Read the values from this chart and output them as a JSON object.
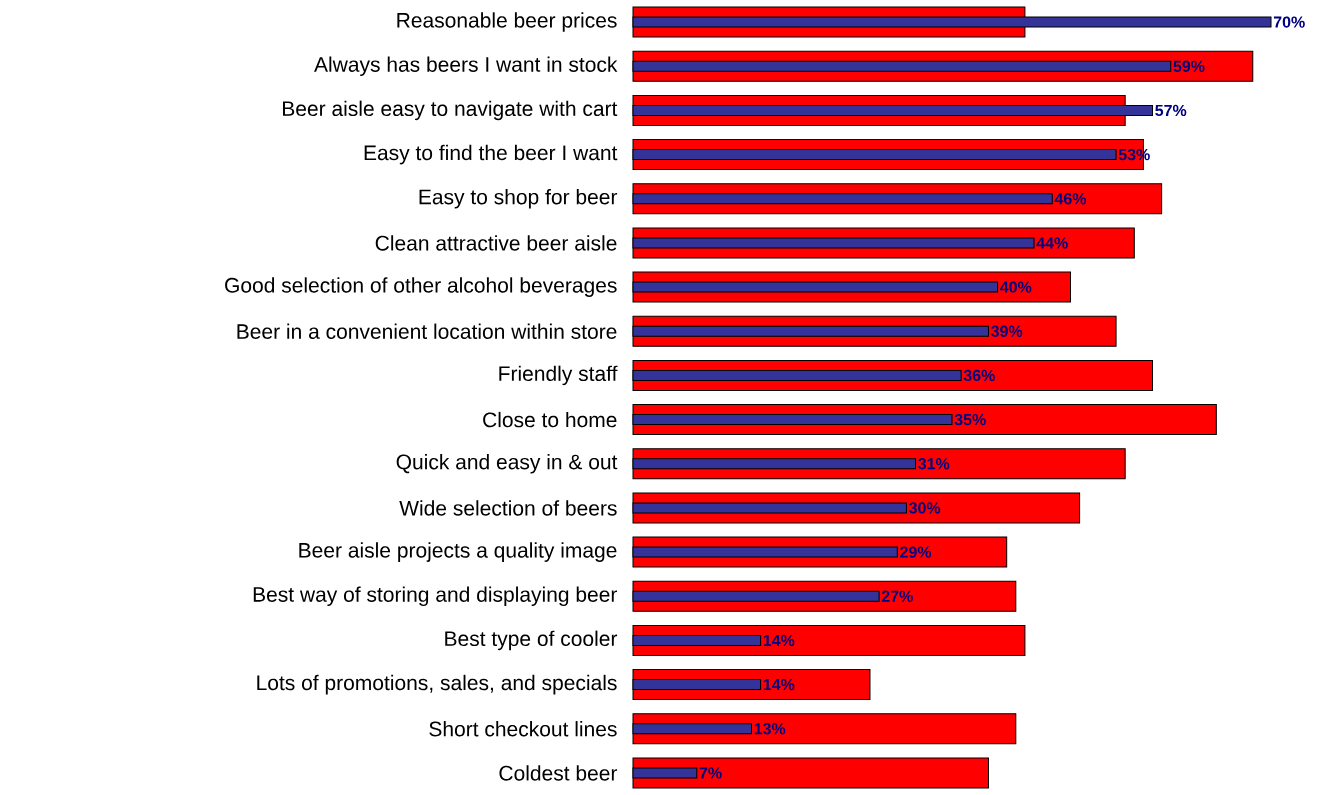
{
  "chart_data": {
    "type": "bar",
    "orientation": "horizontal",
    "tick_labels": "y",
    "xlim": [
      0,
      70
    ],
    "categories": [
      "Reasonable beer prices",
      "Always has beers I want in stock",
      "Beer aisle easy to navigate with cart",
      "Easy to find the beer I want",
      "Easy to shop for beer",
      "Clean attractive beer aisle",
      "Good selection of other alcohol beverages",
      "Beer in a convenient location within store",
      "Friendly staff",
      "Close to home",
      "Quick and easy in & out",
      "Wide selection of beers",
      "Beer aisle projects a quality image",
      "Best way of storing and displaying beer",
      "Best type of cooler",
      "Lots of promotions, sales, and specials",
      "Short checkout lines",
      "Coldest beer"
    ],
    "series": [
      {
        "color": "#ff0000",
        "values": [
          43,
          68,
          54,
          56,
          58,
          55,
          48,
          53,
          57,
          64,
          54,
          49,
          41,
          42,
          43,
          26,
          42,
          39
        ]
      },
      {
        "color": "#333399",
        "values": [
          70,
          59,
          57,
          53,
          46,
          44,
          40,
          39,
          36,
          35,
          31,
          30,
          29,
          27,
          14,
          14,
          13,
          7
        ],
        "value_labels": [
          "70%",
          "59%",
          "57%",
          "53%",
          "46%",
          "44%",
          "40%",
          "39%",
          "36%",
          "35%",
          "31%",
          "30%",
          "29%",
          "27%",
          "14%",
          "14%",
          "13%",
          "7%"
        ]
      }
    ]
  }
}
